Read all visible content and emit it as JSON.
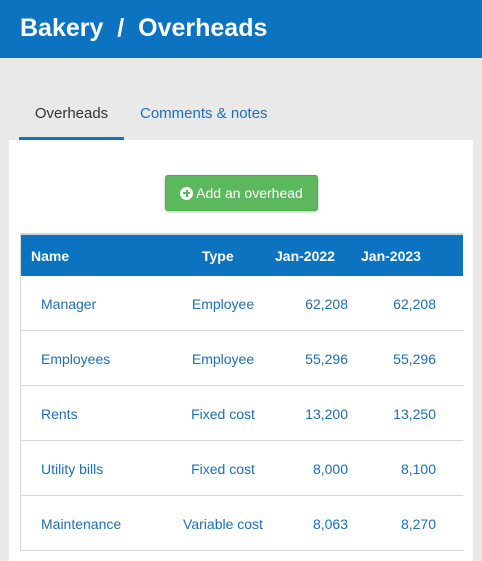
{
  "header": {
    "title": "Bakery  /  Overheads"
  },
  "tabs": [
    {
      "label": "Overheads",
      "active": true
    },
    {
      "label": "Comments & notes",
      "active": false
    }
  ],
  "add_button": {
    "label": "Add an overhead",
    "icon": "plus-circle-icon"
  },
  "table": {
    "columns": [
      "Name",
      "Type",
      "Jan-2022",
      "Jan-2023"
    ],
    "rows": [
      {
        "name": "Manager",
        "type": "Employee",
        "y2022": "62,208",
        "y2023": "62,208"
      },
      {
        "name": "Employees",
        "type": "Employee",
        "y2022": "55,296",
        "y2023": "55,296"
      },
      {
        "name": "Rents",
        "type": "Fixed cost",
        "y2022": "13,200",
        "y2023": "13,250"
      },
      {
        "name": "Utility bills",
        "type": "Fixed cost",
        "y2022": "8,000",
        "y2023": "8,100"
      },
      {
        "name": "Maintenance",
        "type": "Variable cost",
        "y2022": "8,063",
        "y2023": "8,270"
      }
    ]
  },
  "colors": {
    "primary": "#0b73bf",
    "success": "#5cb85c",
    "link": "#1e6fb3"
  }
}
